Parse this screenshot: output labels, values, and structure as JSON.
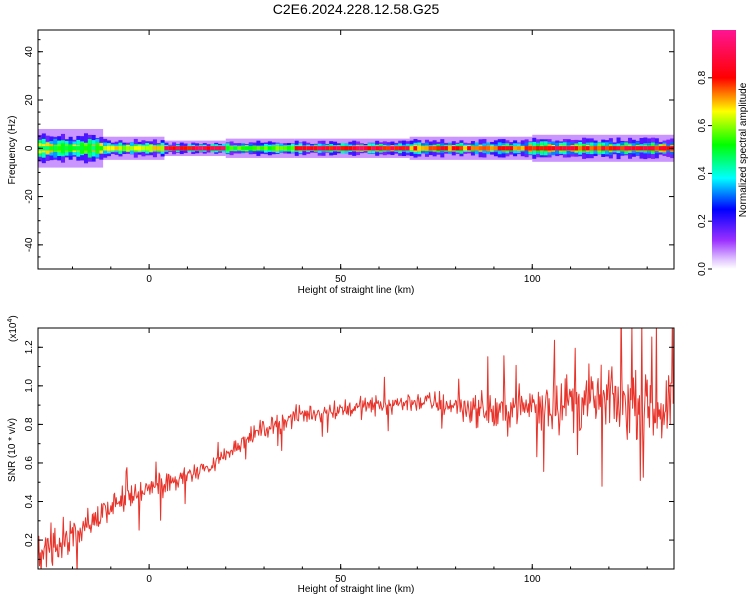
{
  "title": "C2E6.2024.228.12.58.G25",
  "chart_data": [
    {
      "type": "heatmap",
      "xlabel": "Height of straight line (km)",
      "ylabel": "Frequency (Hz)",
      "xlim": [
        -29,
        137
      ],
      "ylim": [
        -50,
        49
      ],
      "xticks": [
        0,
        50,
        100
      ],
      "yticks": [
        -40,
        -20,
        0,
        20,
        40
      ],
      "colorbar": {
        "label": "Normalized spectral amplitude",
        "ticks": [
          0.0,
          0.2,
          0.4,
          0.6,
          0.8
        ],
        "range": [
          0,
          1
        ],
        "colormap": "rainbow (violet-blue-cyan-green-yellow-red-magenta)"
      },
      "ridge_frequency_hz": 0,
      "segments": [
        {
          "x_start": -29,
          "x_end": -12,
          "peak_amplitude": 0.55,
          "spread_hz": 5
        },
        {
          "x_start": -12,
          "x_end": 4,
          "peak_amplitude": 0.7,
          "spread_hz": 3
        },
        {
          "x_start": 4,
          "x_end": 20,
          "peak_amplitude": 0.95,
          "spread_hz": 2
        },
        {
          "x_start": 20,
          "x_end": 38,
          "peak_amplitude": 0.6,
          "spread_hz": 2.5
        },
        {
          "x_start": 38,
          "x_end": 68,
          "peak_amplitude": 0.95,
          "spread_hz": 2.5
        },
        {
          "x_start": 68,
          "x_end": 100,
          "peak_amplitude": 0.85,
          "spread_hz": 3
        },
        {
          "x_start": 100,
          "x_end": 137,
          "peak_amplitude": 0.9,
          "spread_hz": 3.5
        }
      ]
    },
    {
      "type": "line",
      "xlabel": "Height of straight line (km)",
      "ylabel": "SNR (10 * v/v)",
      "multiplier_label": "(x10",
      "multiplier_exponent": "4",
      "xlim": [
        -29,
        137
      ],
      "ylim": [
        0.05,
        1.3
      ],
      "xticks": [
        0,
        50,
        100
      ],
      "yticks": [
        0.2,
        0.4,
        0.6,
        0.8,
        1.0,
        1.2
      ],
      "ytick_labels": [
        "0.2",
        "0.4",
        "0.6",
        "0.8",
        "1.0",
        "1.2"
      ],
      "series_color": "#e8332a",
      "envelope": {
        "x": [
          -29,
          -20,
          -12,
          -5,
          0,
          8,
          16,
          22,
          30,
          40,
          50,
          60,
          70,
          80,
          90,
          100,
          110,
          120,
          130,
          137
        ],
        "y": [
          0.15,
          0.22,
          0.35,
          0.42,
          0.46,
          0.52,
          0.58,
          0.68,
          0.78,
          0.85,
          0.88,
          0.9,
          0.92,
          0.9,
          0.86,
          0.9,
          0.92,
          0.93,
          0.88,
          0.9
        ]
      },
      "noise_amplitude": {
        "x": [
          -29,
          -10,
          20,
          40,
          70,
          95,
          110,
          137
        ],
        "y": [
          0.12,
          0.08,
          0.05,
          0.06,
          0.06,
          0.12,
          0.18,
          0.18
        ]
      }
    }
  ]
}
